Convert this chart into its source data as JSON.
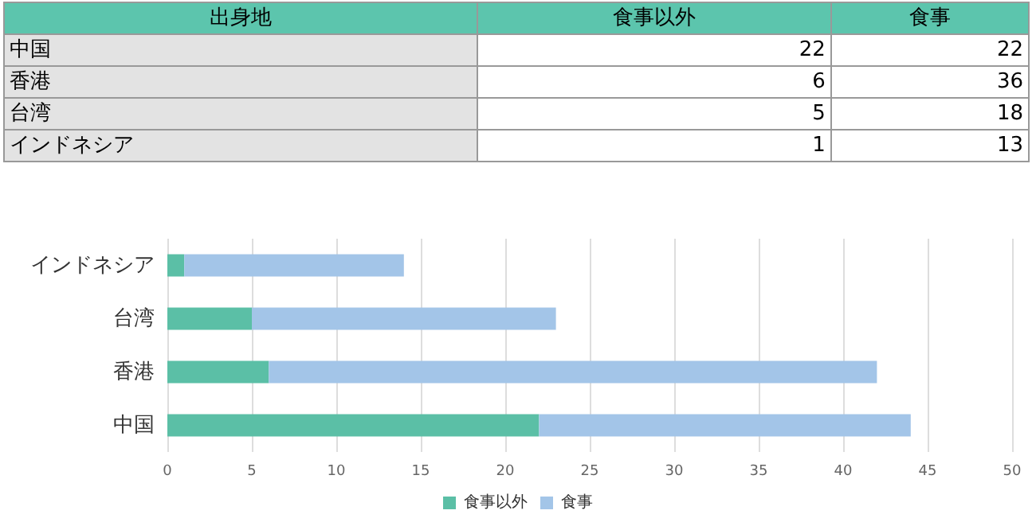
{
  "chart_data": [
    {
      "type": "other",
      "annotations": [
        "出身地"
      ],
      "categories": [
        "中国",
        "香港",
        "台湾",
        "インドネシア"
      ],
      "series": [
        {
          "name": "食事以外",
          "values": [
            22,
            6,
            5,
            1
          ]
        },
        {
          "name": "食事",
          "values": [
            22,
            36,
            18,
            13
          ]
        }
      ],
      "data_labels": true
    },
    {
      "type": "bar",
      "orientation": "horizontal",
      "stacked": true,
      "categories": [
        "インドネシア",
        "台湾",
        "香港",
        "中国"
      ],
      "series": [
        {
          "name": "食事以外",
          "color": "#5bbfa6",
          "values": [
            1,
            5,
            6,
            22
          ]
        },
        {
          "name": "食事",
          "color": "#a3c5e8",
          "values": [
            13,
            18,
            36,
            22
          ]
        }
      ],
      "xlim": [
        0,
        50
      ],
      "xticks": [
        0,
        5,
        10,
        15,
        20,
        25,
        30,
        35,
        40,
        45,
        50
      ],
      "grid": "x",
      "legend": "bottom"
    }
  ]
}
